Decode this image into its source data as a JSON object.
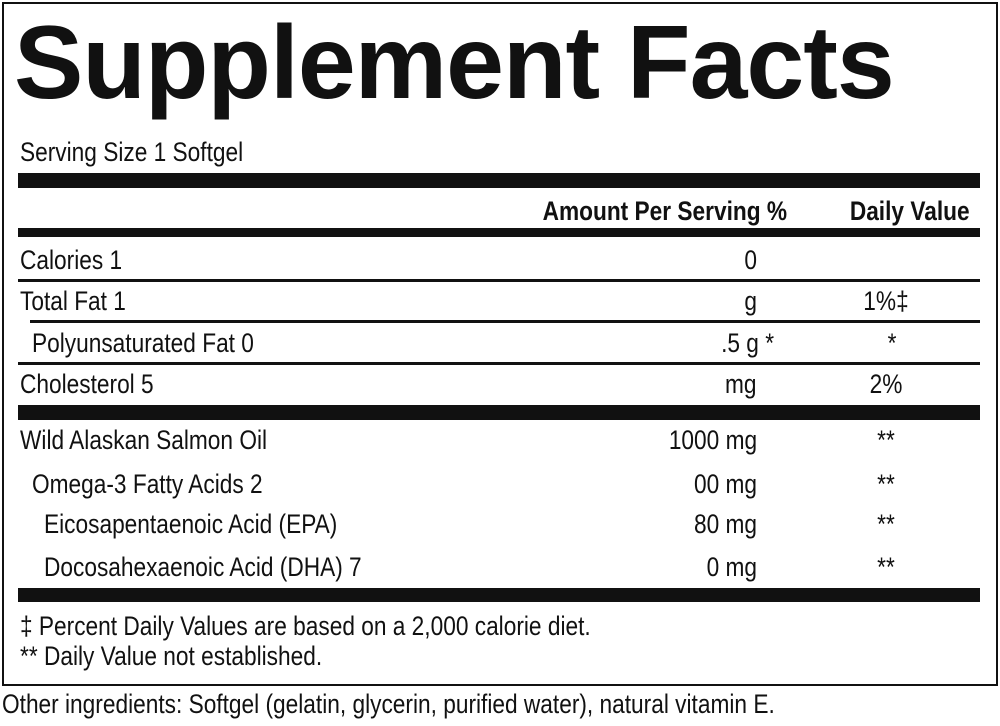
{
  "title": "Supplement Facts",
  "serving_size": "Serving Size 1 Softgel",
  "header": {
    "amount": "Amount Per Serving %",
    "daily_value": "Daily Value"
  },
  "rows": [
    {
      "name": "Calories 1",
      "amount": "0",
      "dv": ""
    },
    {
      "name": "Total Fat 1",
      "amount": "g",
      "dv": "1%‡"
    },
    {
      "name": "Polyunsaturated Fat 0",
      "amount": ".5 g *",
      "dv": "*"
    },
    {
      "name": "Cholesterol 5",
      "amount": "mg",
      "dv": "2%"
    }
  ],
  "rows2": [
    {
      "name": "Wild Alaskan Salmon Oil",
      "amount": "1000 mg",
      "dv": "**"
    },
    {
      "name": "Omega-3 Fatty Acids 2",
      "amount": "00 mg",
      "dv": "**"
    },
    {
      "name": "Eicosapentaenoic Acid (EPA)",
      "amount": "80 mg",
      "dv": "**"
    },
    {
      "name": "Docosahexaenoic Acid (DHA) 7",
      "amount": "0 mg",
      "dv": "**"
    }
  ],
  "footnotes": [
    "‡  Percent Daily Values are based on a 2,000 calorie diet.",
    "** Daily Value not established."
  ],
  "other_ingredients": "Other ingredients: Softgel (gelatin, glycerin, purified water), natural vitamin E."
}
